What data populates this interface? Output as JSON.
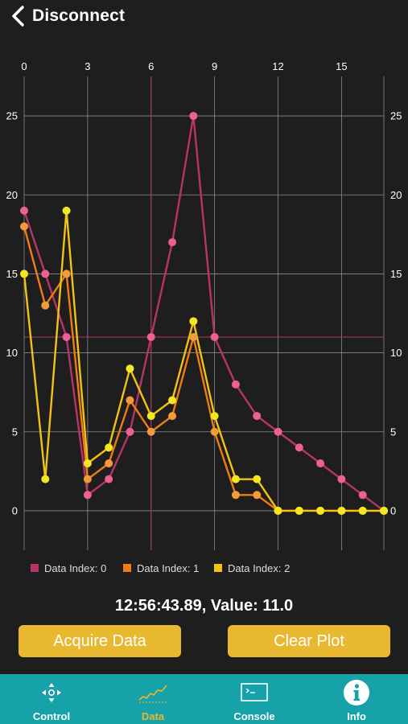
{
  "header": {
    "back_label": "Disconnect"
  },
  "chart_data": {
    "type": "line",
    "x": [
      0,
      1,
      2,
      3,
      4,
      5,
      6,
      7,
      8,
      9,
      10,
      11,
      12,
      13,
      14,
      15,
      16,
      17
    ],
    "x_ticks": [
      0,
      3,
      6,
      9,
      12,
      15
    ],
    "y_ticks": [
      0,
      5,
      10,
      15,
      20,
      25
    ],
    "xlim": [
      0,
      17
    ],
    "ylim": [
      -2.5,
      27.5
    ],
    "grid": true,
    "legend_position": "bottom",
    "crosshair": {
      "x": 6,
      "y": 11,
      "color": "#b8336a"
    },
    "series": [
      {
        "name": "Data Index: 0",
        "color": "#b8336a",
        "marker": "#ee5f92",
        "values": [
          19,
          15,
          11,
          1,
          2,
          5,
          11,
          17,
          25,
          11,
          8,
          6,
          5,
          4,
          3,
          2,
          1,
          0
        ]
      },
      {
        "name": "Data Index: 1",
        "color": "#f07c12",
        "marker": "#f29b3a",
        "values": [
          18,
          13,
          15,
          2,
          3,
          7,
          5,
          6,
          11,
          5,
          1,
          1,
          0,
          0,
          0,
          0,
          0,
          0
        ]
      },
      {
        "name": "Data Index: 2",
        "color": "#f2c214",
        "marker": "#f5e624",
        "values": [
          15,
          2,
          19,
          3,
          4,
          9,
          6,
          7,
          12,
          6,
          2,
          2,
          0,
          0,
          0,
          0,
          0,
          0
        ]
      }
    ]
  },
  "readout": "12:56:43.89, Value: 11.0",
  "buttons": {
    "acquire": "Acquire Data",
    "clear": "Clear Plot"
  },
  "tabs": [
    {
      "label": "Control",
      "icon": "dpad-icon"
    },
    {
      "label": "Data",
      "icon": "chart-icon",
      "active": true
    },
    {
      "label": "Console",
      "icon": "terminal-icon"
    },
    {
      "label": "Info",
      "icon": "info-icon"
    }
  ]
}
